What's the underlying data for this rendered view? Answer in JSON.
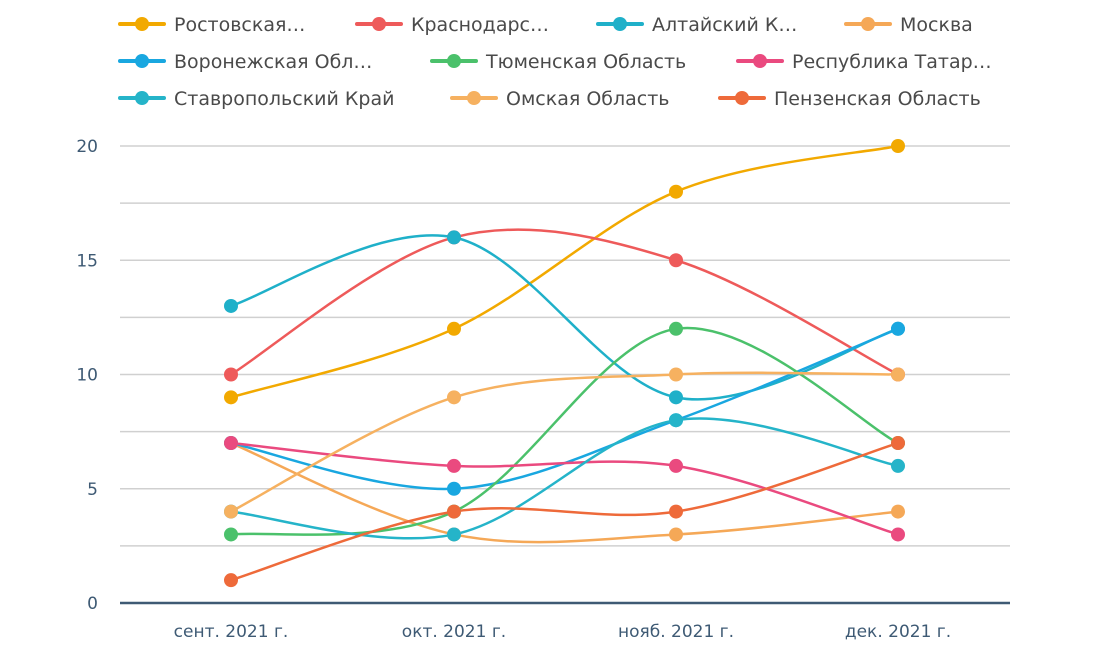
{
  "chart_data": {
    "type": "line",
    "title": "",
    "xlabel": "",
    "ylabel": "",
    "categories": [
      "сент. 2021 г.",
      "окт. 2021 г.",
      "нояб. 2021 г.",
      "дек. 2021 г."
    ],
    "ylim": [
      0,
      20
    ],
    "yticks": [
      "0",
      "5",
      "10",
      "15",
      "20"
    ],
    "grid": true,
    "smooth": true,
    "legend_position": "top",
    "series": [
      {
        "name": "Ростовская…",
        "color": "#f2a900",
        "values": [
          9,
          12,
          18,
          20
        ]
      },
      {
        "name": "Краснодарс…",
        "color": "#ee5a5a",
        "values": [
          10,
          16,
          15,
          10
        ]
      },
      {
        "name": "Алтайский К…",
        "color": "#1fb0c9",
        "values": [
          13,
          16,
          9,
          12
        ]
      },
      {
        "name": "Москва",
        "color": "#f5a857",
        "values": [
          7,
          3,
          3,
          4
        ]
      },
      {
        "name": "Воронежская Обл…",
        "color": "#19a7e0",
        "values": [
          7,
          5,
          8,
          12
        ]
      },
      {
        "name": "Тюменская Область",
        "color": "#4bc16b",
        "values": [
          3,
          4,
          12,
          7
        ]
      },
      {
        "name": "Республика Татар…",
        "color": "#ea4a7f",
        "values": [
          7,
          6,
          6,
          3
        ]
      },
      {
        "name": "Ставропольский Край",
        "color": "#25b4c9",
        "values": [
          4,
          3,
          8,
          6
        ]
      },
      {
        "name": "Омская Область",
        "color": "#f6b160",
        "values": [
          4,
          9,
          10,
          10
        ]
      },
      {
        "name": "Пензенская Область",
        "color": "#ee6a3a",
        "values": [
          1,
          4,
          4,
          7
        ]
      }
    ]
  },
  "colors": {
    "grid": "#d0d0d0",
    "axis": "#3e5a74",
    "tick_text": "#3e5a74"
  }
}
